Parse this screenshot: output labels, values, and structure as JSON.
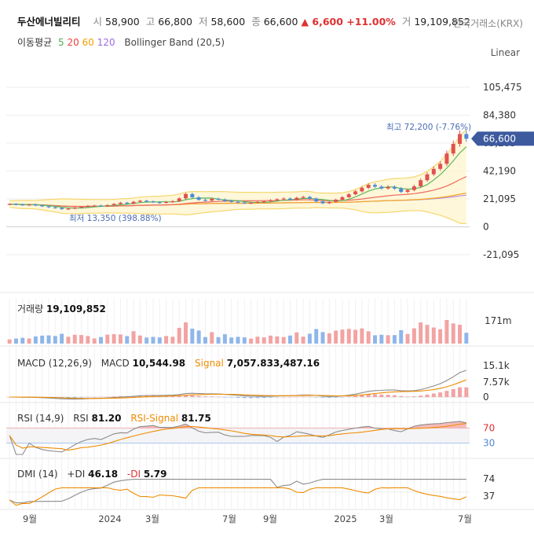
{
  "header": {
    "name": "두산에너빌리티",
    "open_label": "시",
    "open": "58,900",
    "high_label": "고",
    "high": "66,800",
    "low_label": "저",
    "low": "58,600",
    "close_label": "종",
    "close": "66,600",
    "change": "▲ 6,600 +11.00%",
    "volume_label": "거",
    "volume": "19,109,852",
    "exchange": "한국거래소(KRX)",
    "ma_label": "이동평균",
    "ma5": "5",
    "ma20": "20",
    "ma60": "60",
    "ma120": "120",
    "bollinger": "Bollinger Band (20,5)",
    "scale": "Linear"
  },
  "colors": {
    "up": "#e0524f",
    "down": "#4f88d6",
    "bollinger": "#f5d76e",
    "price_tag": "#3d5a9e"
  },
  "chart_data": [
    {
      "type": "candlestick",
      "price_axis_ticks": [
        "105,475",
        "84,380",
        "63,285",
        "42,190",
        "21,095",
        "0",
        "-21,095"
      ],
      "price_tick_values": [
        105475,
        84380,
        63285,
        42190,
        21095,
        0,
        -21095
      ],
      "x_ticks": [
        "9월",
        "2024",
        "3월",
        "7월",
        "9월",
        "2025",
        "3월",
        "7월"
      ],
      "last_price_tag": "66,600",
      "high_annotation": "최고 72,200 (-7.76%)",
      "low_annotation": "최저 13,350 (398.88%)",
      "close_series": [
        17200,
        16900,
        16500,
        16800,
        16200,
        15500,
        14800,
        14200,
        13350,
        13800,
        14500,
        15200,
        15800,
        16100,
        15600,
        16400,
        17300,
        18200,
        17500,
        18900,
        19700,
        19200,
        18600,
        18100,
        18800,
        19400,
        21500,
        24800,
        22300,
        20400,
        19800,
        21200,
        20600,
        19500,
        19000,
        18400,
        17900,
        18200,
        18800,
        19300,
        20100,
        20800,
        21400,
        20500,
        21900,
        22600,
        21300,
        19200,
        17800,
        18900,
        20500,
        22400,
        24600,
        26800,
        29500,
        31700,
        30400,
        29000,
        30200,
        28900,
        26400,
        27800,
        30600,
        35200,
        39700,
        43800,
        47600,
        55400,
        62700,
        70100,
        66600
      ],
      "ma_periods": [
        5,
        20,
        60,
        120
      ],
      "bollinger": "20,5"
    },
    {
      "type": "bar",
      "title": "거래량",
      "value": "19,109,852",
      "axis_ticks": [
        "171m"
      ]
    },
    {
      "type": "line",
      "title": "MACD (12,26,9)",
      "macd_label": "MACD",
      "macd_value": "10,544.98",
      "signal_label": "Signal",
      "signal_value": "7,057.833,487.16",
      "axis_ticks": [
        "15.1k",
        "7.57k",
        "0"
      ]
    },
    {
      "type": "line",
      "title": "RSI (14,9)",
      "rsi_label": "RSI",
      "rsi_value": "81.20",
      "signal_label": "RSI-Signal",
      "signal_value": "81.75",
      "axis_ticks": [
        "70",
        "30"
      ]
    },
    {
      "type": "line",
      "title": "DMI (14)",
      "pdi_label": "+DI",
      "pdi_value": "46.18",
      "mdi_label": "-DI",
      "mdi_value": "5.79",
      "axis_ticks": [
        "74",
        "37"
      ]
    }
  ]
}
